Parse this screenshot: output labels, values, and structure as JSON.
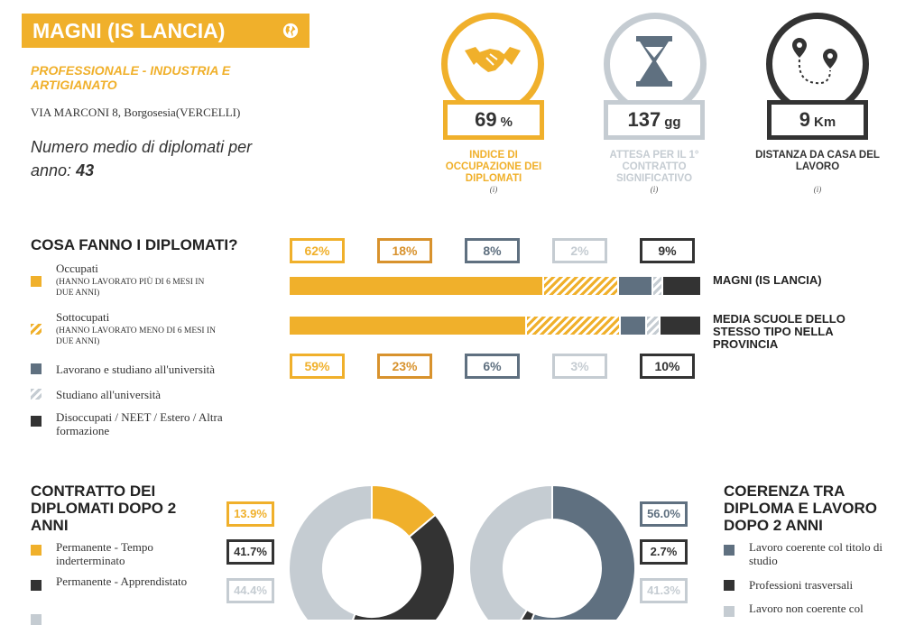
{
  "header": {
    "school_name": "MAGNI (IS LANCIA)",
    "type": "PROFESSIONALE - INDUSTRIA E ARTIGIANATO",
    "address": "VIA MARCONI 8, Borgosesia(VERCELLI)",
    "avg_label": "Numero medio di diplomati per anno:",
    "avg_value": "43"
  },
  "kpis": [
    {
      "value": "69",
      "unit": "%",
      "label": "INDICE DI OCCUPAZIONE DEI DIPLOMATI",
      "info": "(i)",
      "color": "#f0b02b",
      "icon": "handshake-icon"
    },
    {
      "value": "137",
      "unit": "gg",
      "label": "ATTESA PER IL 1° CONTRATTO SIGNIFICATIVO",
      "info": "(i)",
      "color": "#c5ccd2",
      "icon": "hourglass-icon"
    },
    {
      "value": "9",
      "unit": "Km",
      "label": "DISTANZA DA CASA DEL LAVORO",
      "info": "(i)",
      "color": "#333333",
      "icon": "map-route-icon"
    }
  ],
  "cosa_fanno": {
    "title": "COSA FANNO I DIPLOMATI?",
    "legend": [
      {
        "label": "Occupati",
        "sub": "(HANNO LAVORATO PIÙ DI 6 MESI IN DUE ANNI)"
      },
      {
        "label": "Sottocupati",
        "sub": "(HANNO LAVORATO MENO DI 6 MESI IN DUE ANNI)"
      },
      {
        "label": "Lavorano e studiano all'università",
        "sub": ""
      },
      {
        "label": "Studiano all'università",
        "sub": ""
      },
      {
        "label": "Disoccupati / NEET / Estero / Altra formazione",
        "sub": ""
      }
    ],
    "school_label": "MAGNI (IS LANCIA)",
    "province_label": "MEDIA SCUOLE DELLO STESSO TIPO NELLA PROVINCIA",
    "school_pct": [
      "62%",
      "18%",
      "8%",
      "2%",
      "9%"
    ],
    "province_pct": [
      "59%",
      "23%",
      "6%",
      "3%",
      "10%"
    ]
  },
  "contratto": {
    "title": "CONTRATTO DEI DIPLOMATI DOPO 2 ANNI",
    "values": [
      "13.9%",
      "41.7%",
      "44.4%"
    ],
    "legend": [
      "Permanente - Tempo inderterminato",
      "Permanente - Apprendistato"
    ]
  },
  "coerenza": {
    "title": "COERENZA TRA DIPLOMA E LAVORO DOPO 2 ANNI",
    "values": [
      "56.0%",
      "2.7%",
      "41.3%"
    ],
    "legend": [
      "Lavoro coerente col titolo di studio",
      "Professioni trasversali",
      "Lavoro non coerente col"
    ]
  },
  "colors": {
    "orange": "#f0b02b",
    "dark_orange": "#d8922d",
    "slate": "#5f7080",
    "light_gray": "#c5ccd2",
    "dark": "#333333"
  },
  "chart_data": [
    {
      "type": "bar",
      "title": "COSA FANNO I DIPLOMATI?",
      "categories": [
        "Occupati",
        "Sottocupati",
        "Lavorano e studiano all'università",
        "Studiano all'università",
        "Disoccupati / NEET / Estero / Altra formazione"
      ],
      "series": [
        {
          "name": "MAGNI (IS LANCIA)",
          "values": [
            62,
            18,
            8,
            2,
            9
          ]
        },
        {
          "name": "MEDIA SCUOLE DELLO STESSO TIPO NELLA PROVINCIA",
          "values": [
            59,
            23,
            6,
            3,
            10
          ]
        }
      ]
    },
    {
      "type": "pie",
      "title": "CONTRATTO DEI DIPLOMATI DOPO 2 ANNI",
      "labels": [
        "Permanente - Tempo inderterminato",
        "Permanente - Apprendistato",
        ""
      ],
      "values": [
        13.9,
        41.7,
        44.4
      ],
      "colors": [
        "#f0b02b",
        "#333333",
        "#c5ccd2"
      ]
    },
    {
      "type": "pie",
      "title": "COERENZA TRA DIPLOMA E LAVORO DOPO 2 ANNI",
      "labels": [
        "Lavoro coerente col titolo di studio",
        "Professioni trasversali",
        "Lavoro non coerente col"
      ],
      "values": [
        56.0,
        2.7,
        41.3
      ],
      "colors": [
        "#5f7080",
        "#333333",
        "#c5ccd2"
      ]
    }
  ]
}
